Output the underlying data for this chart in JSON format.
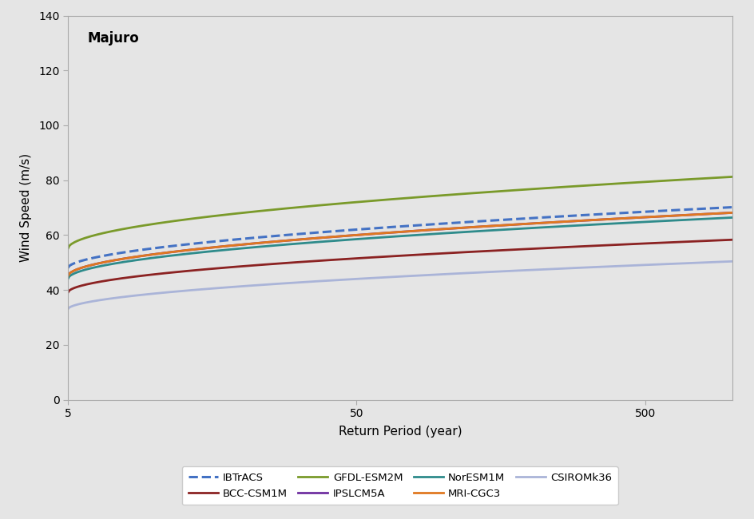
{
  "title": "Majuro",
  "xlabel": "Return Period (year)",
  "ylabel": "Wind Speed (m/s)",
  "ylim": [
    0,
    140
  ],
  "yticks": [
    0,
    20,
    40,
    60,
    80,
    100,
    120,
    140
  ],
  "xlim": [
    5,
    1000
  ],
  "xticks": [
    5,
    50,
    500
  ],
  "background_color": "#e5e5e5",
  "fig_background": "#e5e5e5",
  "curves": {
    "IBTrACS": {
      "color": "#4472c4",
      "linestyle": "--",
      "linewidth": 2.2,
      "a": 48.0,
      "b": 14.0,
      "c": 0.55
    },
    "BCC-CSM1M": {
      "color": "#8b2222",
      "linestyle": "-",
      "linewidth": 2.0,
      "a": 39.0,
      "b": 12.5,
      "c": 0.52
    },
    "GFDL-ESM2M": {
      "color": "#7a9a2a",
      "linestyle": "-",
      "linewidth": 2.0,
      "a": 55.0,
      "b": 17.0,
      "c": 0.52
    },
    "IPSLCM5A": {
      "color": "#7030a0",
      "linestyle": "-",
      "linewidth": 2.0,
      "a": 45.0,
      "b": 15.0,
      "c": 0.52
    },
    "NorESM1M": {
      "color": "#2e8b8b",
      "linestyle": "-",
      "linewidth": 2.0,
      "a": 44.0,
      "b": 14.5,
      "c": 0.52
    },
    "MRI-CGC3": {
      "color": "#e07820",
      "linestyle": "-",
      "linewidth": 2.0,
      "a": 45.0,
      "b": 15.0,
      "c": 0.52
    },
    "CSIROMk36": {
      "color": "#aab4d8",
      "linestyle": "-",
      "linewidth": 2.0,
      "a": 33.0,
      "b": 11.0,
      "c": 0.55
    }
  },
  "legend_order": [
    "IBTrACS",
    "BCC-CSM1M",
    "GFDL-ESM2M",
    "IPSLCM5A",
    "NorESM1M",
    "MRI-CGC3",
    "CSIROMk36"
  ]
}
